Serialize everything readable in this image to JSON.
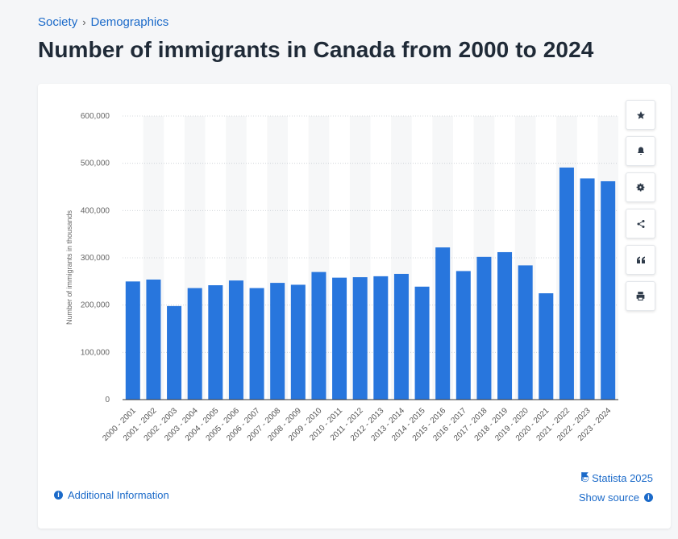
{
  "breadcrumb": {
    "items": [
      {
        "label": "Society"
      },
      {
        "label": "Demographics"
      }
    ],
    "separator": "›"
  },
  "page_title": "Number of immigrants in Canada from 2000 to 2024",
  "toolbar": {
    "buttons": [
      {
        "name": "favorite",
        "icon": "star-icon"
      },
      {
        "name": "notification",
        "icon": "bell-icon"
      },
      {
        "name": "settings",
        "icon": "gear-icon"
      },
      {
        "name": "share",
        "icon": "share-icon"
      },
      {
        "name": "cite",
        "icon": "quote-icon"
      },
      {
        "name": "print",
        "icon": "print-icon"
      }
    ]
  },
  "footer": {
    "additional_info": "Additional Information",
    "copyright": "© Statista 2025",
    "show_source": "Show source"
  },
  "colors": {
    "bar": "#2876dd",
    "link": "#1b6ac9",
    "title": "#1f2a37"
  },
  "chart_data": {
    "type": "bar",
    "title": "",
    "xlabel": "",
    "ylabel": "Number of immigrants in thousands",
    "ylim": [
      0,
      600000
    ],
    "yticks": [
      0,
      100000,
      200000,
      300000,
      400000,
      500000,
      600000
    ],
    "ytick_labels": [
      "0",
      "100,000",
      "200,000",
      "300,000",
      "400,000",
      "500,000",
      "600,000"
    ],
    "grid": true,
    "categories": [
      "2000 - 2001",
      "2001 - 2002",
      "2002 - 2003",
      "2003 - 2004",
      "2004 - 2005",
      "2005 - 2006",
      "2006 - 2007",
      "2007 - 2008",
      "2008 - 2009",
      "2009 - 2010",
      "2010 - 2011",
      "2011 - 2012",
      "2012 - 2013",
      "2013 - 2014",
      "2014 - 2015",
      "2015 - 2016",
      "2016 - 2017",
      "2017 - 2018",
      "2018 - 2019",
      "2019 - 2020",
      "2020 - 2021",
      "2021 - 2022",
      "2022 - 2023",
      "2023 - 2024"
    ],
    "values": [
      250000,
      254000,
      198000,
      236000,
      242000,
      252000,
      236000,
      247000,
      243000,
      270000,
      258000,
      259000,
      261000,
      266000,
      239000,
      322000,
      272000,
      302000,
      312000,
      284000,
      225000,
      491000,
      468000,
      462000
    ]
  }
}
